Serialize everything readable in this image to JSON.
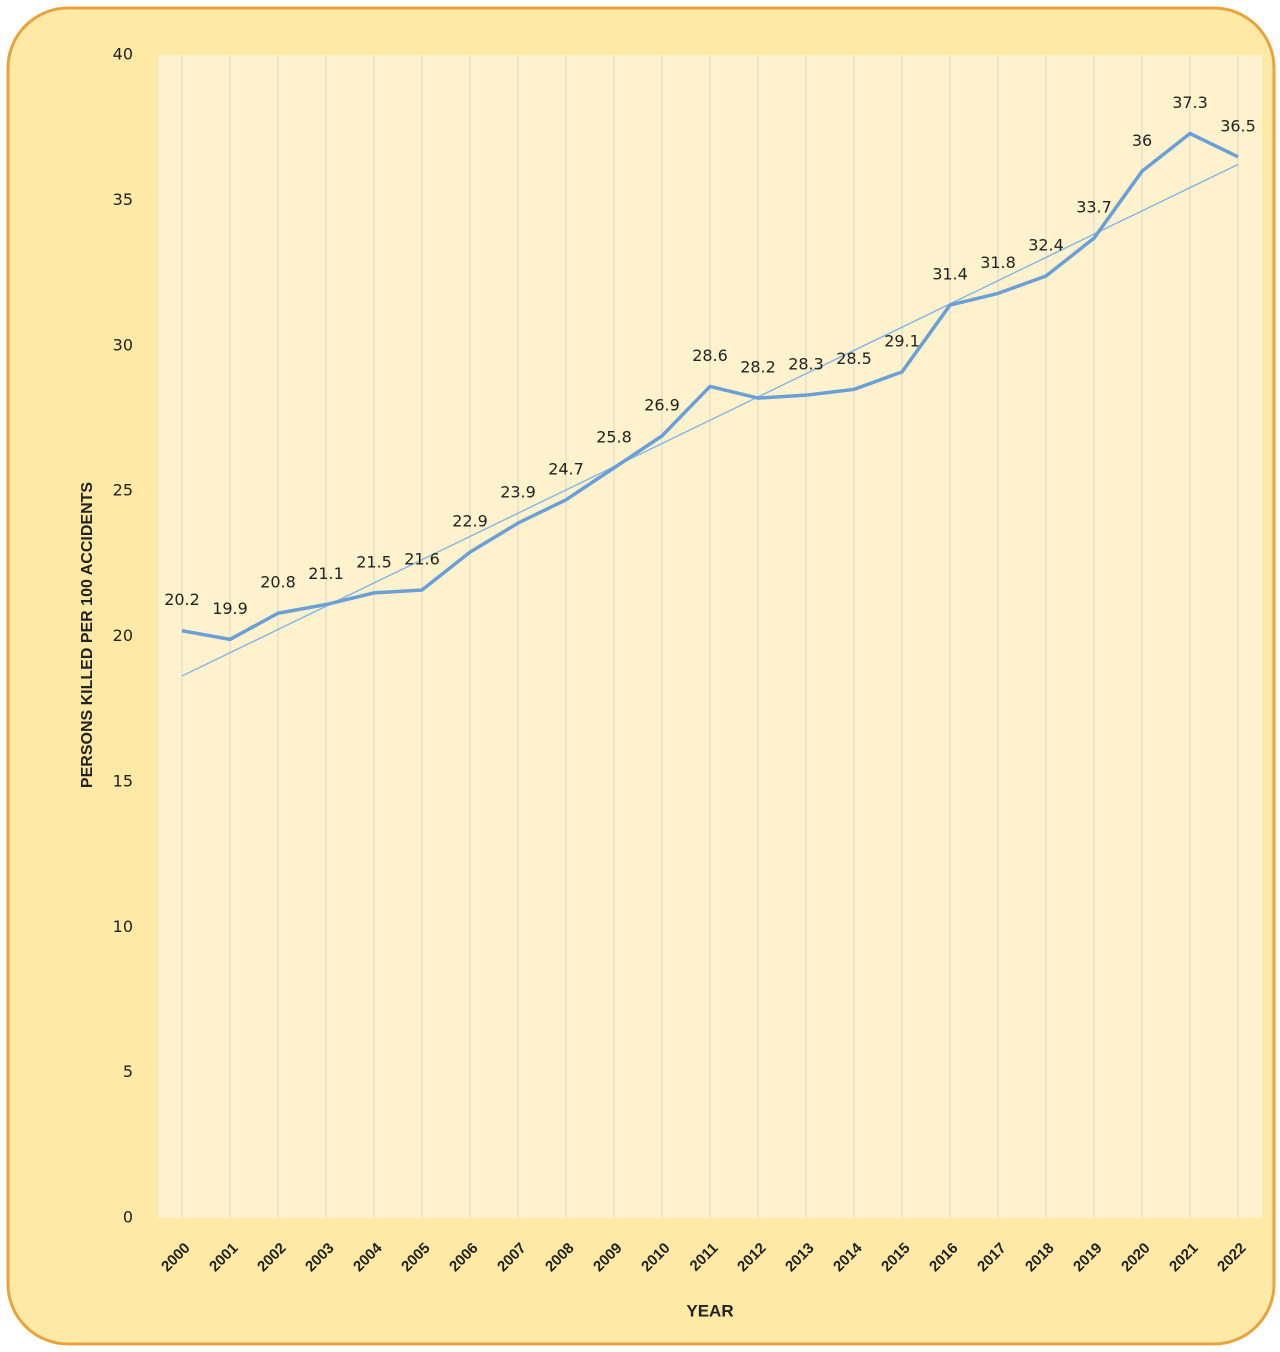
{
  "chart_data": {
    "type": "line",
    "x_label": "YEAR",
    "y_label": "PERSONS KILLED  PER 100 ACCIDENTS",
    "categories": [
      "2000",
      "2001",
      "2002",
      "2003",
      "2004",
      "2005",
      "2006",
      "2007",
      "2008",
      "2009",
      "2010",
      "2011",
      "2012",
      "2013",
      "2014",
      "2015",
      "2016",
      "2017",
      "2018",
      "2019",
      "2020",
      "2021",
      "2022"
    ],
    "series": [
      {
        "name": "Persons killed per 100 accidents",
        "color": "#6a9fd8",
        "values": [
          20.2,
          19.9,
          20.8,
          21.1,
          21.5,
          21.6,
          22.9,
          23.9,
          24.7,
          25.8,
          26.9,
          28.6,
          28.2,
          28.3,
          28.5,
          29.1,
          31.4,
          31.8,
          32.4,
          33.7,
          36,
          37.3,
          36.5
        ]
      }
    ],
    "trendline": true,
    "trendline_color": "#8ab8e6",
    "ylim": [
      0,
      40
    ],
    "yticks": [
      0,
      5,
      10,
      15,
      20,
      25,
      30,
      35,
      40
    ],
    "grid": "x",
    "legend": false
  }
}
